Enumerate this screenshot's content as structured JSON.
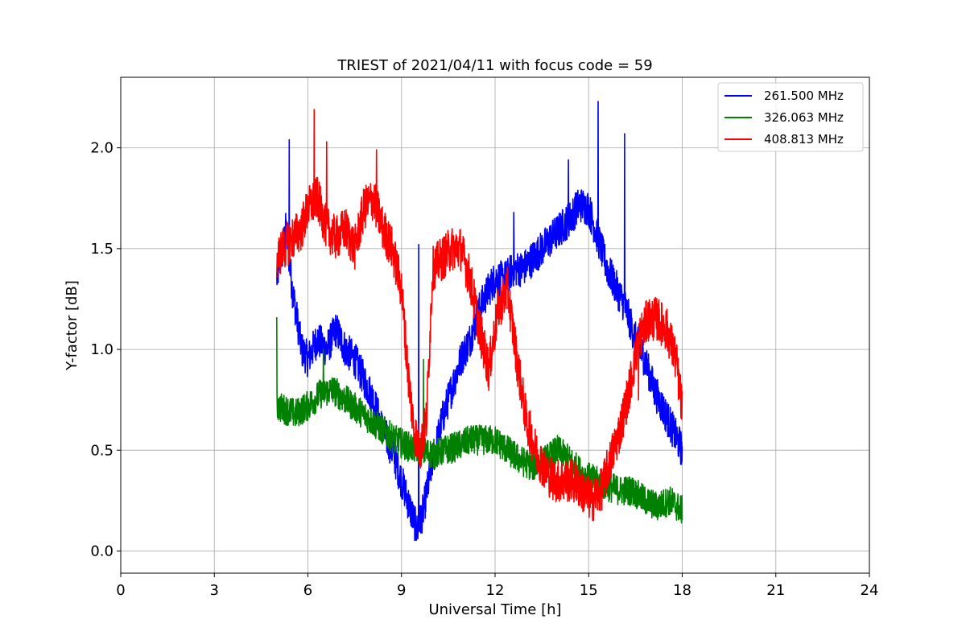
{
  "chart_data": {
    "type": "line",
    "title": "TRIEST of 2021/04/11 with focus code = 59",
    "xlabel": "Universal Time [h]",
    "ylabel": "Y-factor [dB]",
    "xlim": [
      0,
      24
    ],
    "ylim": [
      -0.11,
      2.35
    ],
    "xticks": [
      0,
      3,
      6,
      9,
      12,
      15,
      18,
      21,
      24
    ],
    "xtick_labels": [
      "0",
      "3",
      "6",
      "9",
      "12",
      "15",
      "18",
      "21",
      "24"
    ],
    "yticks": [
      0.0,
      0.5,
      1.0,
      1.5,
      2.0
    ],
    "ytick_labels": [
      "0.0",
      "0.5",
      "1.0",
      "1.5",
      "2.0"
    ],
    "grid": true,
    "legend_position": "top-right",
    "series": [
      {
        "name": "261.500 MHz",
        "color": "#0000ff",
        "noise": 0.09,
        "spikes": [
          [
            5.4,
            2.04
          ],
          [
            9.55,
            1.52
          ],
          [
            14.35,
            1.94
          ],
          [
            15.3,
            2.23
          ],
          [
            16.15,
            2.07
          ],
          [
            12.6,
            1.68
          ]
        ],
        "x": [
          5.0,
          5.3,
          5.5,
          5.8,
          6.0,
          6.3,
          6.6,
          6.9,
          7.2,
          7.5,
          7.8,
          8.1,
          8.4,
          8.7,
          9.0,
          9.2,
          9.4,
          9.5,
          9.7,
          10.0,
          10.3,
          10.6,
          10.9,
          11.2,
          11.5,
          11.8,
          12.0,
          12.3,
          12.6,
          12.9,
          13.2,
          13.5,
          13.8,
          14.1,
          14.4,
          14.7,
          15.0,
          15.3,
          15.6,
          15.9,
          16.2,
          16.5,
          16.8,
          17.1,
          17.4,
          17.7,
          18.0
        ],
        "y": [
          1.35,
          1.6,
          1.3,
          1.0,
          0.95,
          1.05,
          1.0,
          1.1,
          1.0,
          0.95,
          0.85,
          0.75,
          0.6,
          0.5,
          0.35,
          0.25,
          0.15,
          0.1,
          0.2,
          0.45,
          0.65,
          0.8,
          0.95,
          1.05,
          1.2,
          1.3,
          1.35,
          1.35,
          1.4,
          1.4,
          1.45,
          1.5,
          1.55,
          1.6,
          1.65,
          1.72,
          1.7,
          1.55,
          1.4,
          1.3,
          1.2,
          1.05,
          0.95,
          0.8,
          0.7,
          0.6,
          0.5
        ]
      },
      {
        "name": "326.063 MHz",
        "color": "#008000",
        "noise": 0.075,
        "spikes": [
          [
            5.0,
            1.16
          ],
          [
            6.5,
            1.0
          ],
          [
            9.7,
            0.95
          ]
        ],
        "x": [
          5.0,
          5.3,
          5.6,
          6.0,
          6.4,
          6.8,
          7.2,
          7.6,
          8.0,
          8.4,
          8.8,
          9.2,
          9.6,
          10.0,
          10.4,
          10.8,
          11.2,
          11.6,
          12.0,
          12.4,
          12.8,
          13.2,
          13.6,
          14.0,
          14.4,
          14.8,
          15.2,
          15.6,
          16.0,
          16.4,
          16.8,
          17.2,
          17.6,
          18.0
        ],
        "y": [
          0.72,
          0.7,
          0.68,
          0.72,
          0.78,
          0.8,
          0.75,
          0.7,
          0.65,
          0.6,
          0.55,
          0.52,
          0.5,
          0.48,
          0.5,
          0.52,
          0.55,
          0.55,
          0.55,
          0.5,
          0.45,
          0.42,
          0.45,
          0.5,
          0.45,
          0.38,
          0.35,
          0.32,
          0.3,
          0.3,
          0.25,
          0.22,
          0.25,
          0.2
        ]
      },
      {
        "name": "408.813 MHz",
        "color": "#ff0000",
        "noise": 0.11,
        "spikes": [
          [
            6.2,
            2.19
          ],
          [
            6.6,
            2.03
          ],
          [
            8.2,
            1.99
          ],
          [
            16.6,
            0.75
          ]
        ],
        "x": [
          5.0,
          5.2,
          5.5,
          5.8,
          6.0,
          6.3,
          6.6,
          6.9,
          7.2,
          7.5,
          7.8,
          8.1,
          8.4,
          8.7,
          9.0,
          9.2,
          9.4,
          9.6,
          9.8,
          10.0,
          10.3,
          10.6,
          10.9,
          11.2,
          11.5,
          11.8,
          12.1,
          12.4,
          12.7,
          13.0,
          13.3,
          13.6,
          13.9,
          14.2,
          14.5,
          14.8,
          15.1,
          15.4,
          15.7,
          16.0,
          16.3,
          16.6,
          16.9,
          17.2,
          17.5,
          17.8,
          18.0
        ],
        "y": [
          1.45,
          1.5,
          1.55,
          1.6,
          1.7,
          1.75,
          1.6,
          1.55,
          1.6,
          1.5,
          1.7,
          1.75,
          1.6,
          1.5,
          1.3,
          0.9,
          0.6,
          0.5,
          0.65,
          1.4,
          1.45,
          1.5,
          1.5,
          1.35,
          1.1,
          0.9,
          1.2,
          1.3,
          0.95,
          0.65,
          0.5,
          0.4,
          0.35,
          0.35,
          0.35,
          0.3,
          0.25,
          0.3,
          0.45,
          0.6,
          0.8,
          1.05,
          1.15,
          1.15,
          1.1,
          0.95,
          0.7
        ]
      }
    ]
  }
}
